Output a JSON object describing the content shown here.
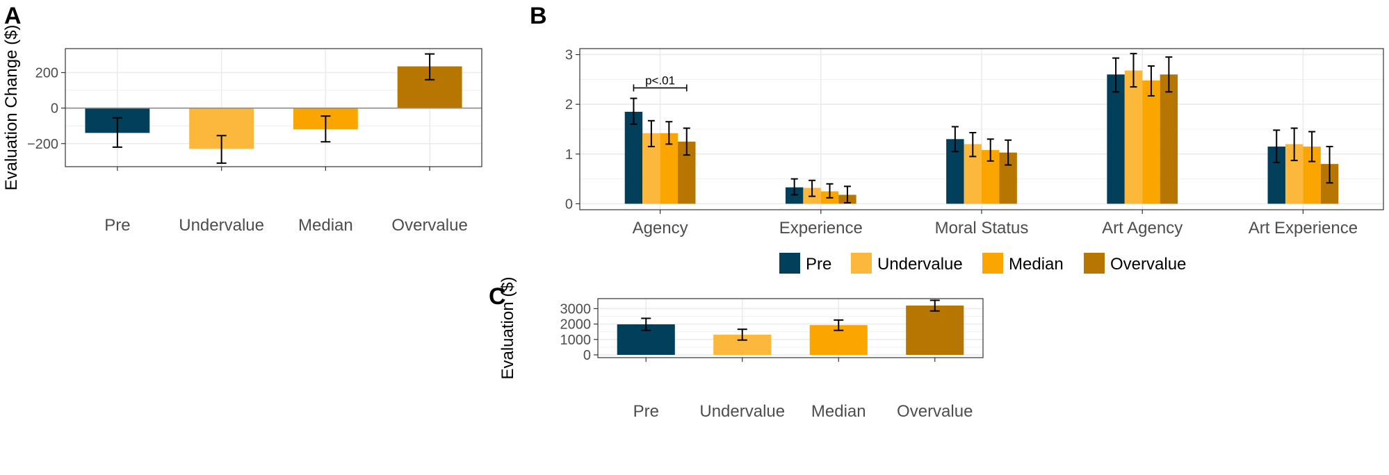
{
  "colors": {
    "Pre": "#023f5b",
    "Undervalue": "#fcb83c",
    "Median": "#fba500",
    "Overvalue": "#b77501",
    "grid": "#ebebeb",
    "panel_border": "#333333"
  },
  "legend": {
    "items": [
      "Pre",
      "Undervalue",
      "Median",
      "Overvalue"
    ],
    "placement": "bottom of panel B"
  },
  "chart_data": [
    {
      "panel": "A",
      "type": "bar",
      "ylabel": "Evaluation Change ($)",
      "categories": [
        "Pre",
        "Undervalue",
        "Median",
        "Overvalue"
      ],
      "values": [
        -140,
        -230,
        -120,
        235
      ],
      "error_low": [
        -220,
        -310,
        -190,
        160
      ],
      "error_high": [
        -55,
        -155,
        -45,
        305
      ],
      "yticks": [
        -200,
        0,
        200
      ],
      "ylim": [
        -330,
        335
      ],
      "zero_line": true,
      "grid": true
    },
    {
      "panel": "B",
      "type": "bar",
      "categories": [
        "Agency",
        "Experience",
        "Moral Status",
        "Art Agency",
        "Art Experience"
      ],
      "series": [
        {
          "name": "Pre",
          "values": [
            1.85,
            0.33,
            1.3,
            2.6,
            1.15
          ],
          "error_low": [
            1.6,
            0.18,
            1.05,
            2.25,
            0.83
          ],
          "error_high": [
            2.12,
            0.5,
            1.55,
            2.93,
            1.48
          ]
        },
        {
          "name": "Undervalue",
          "values": [
            1.42,
            0.32,
            1.2,
            2.68,
            1.2
          ],
          "error_low": [
            1.15,
            0.15,
            0.95,
            2.35,
            0.87
          ],
          "error_high": [
            1.67,
            0.47,
            1.43,
            3.02,
            1.52
          ]
        },
        {
          "name": "Median",
          "values": [
            1.42,
            0.25,
            1.08,
            2.48,
            1.15
          ],
          "error_low": [
            1.2,
            0.12,
            0.86,
            2.17,
            0.85
          ],
          "error_high": [
            1.65,
            0.4,
            1.3,
            2.77,
            1.45
          ]
        },
        {
          "name": "Overvalue",
          "values": [
            1.25,
            0.18,
            1.03,
            2.6,
            0.8
          ],
          "error_low": [
            0.98,
            0.02,
            0.78,
            2.25,
            0.42
          ],
          "error_high": [
            1.52,
            0.35,
            1.28,
            2.95,
            1.15
          ]
        }
      ],
      "yticks": [
        0,
        1,
        2,
        3
      ],
      "ylim": [
        -0.12,
        3.12
      ],
      "grid": true,
      "annotation": {
        "text": "p<.01",
        "category": "Agency",
        "from_series": "Pre",
        "to_series": "Overvalue",
        "y": 2.33
      }
    },
    {
      "panel": "C",
      "type": "bar",
      "ylabel": "Evaluation ($)",
      "categories": [
        "Pre",
        "Undervalue",
        "Median",
        "Overvalue"
      ],
      "values": [
        1980,
        1310,
        1930,
        3200
      ],
      "error_low": [
        1590,
        960,
        1590,
        2850
      ],
      "error_high": [
        2370,
        1660,
        2260,
        3540
      ],
      "yticks": [
        0,
        1000,
        2000,
        3000
      ],
      "ylim": [
        -180,
        3650
      ],
      "grid": true
    }
  ]
}
